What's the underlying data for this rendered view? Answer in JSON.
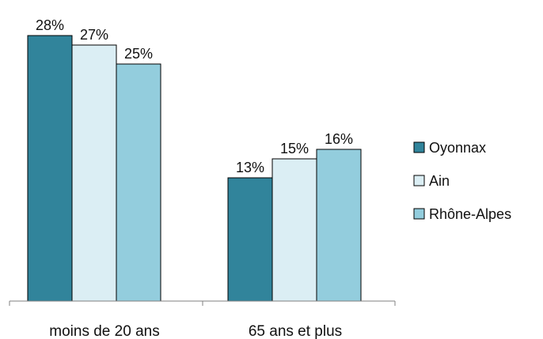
{
  "chart_data": {
    "type": "bar",
    "title": "",
    "xlabel": "",
    "ylabel": "",
    "categories": [
      "moins de 20 ans",
      "65 ans et plus"
    ],
    "series": [
      {
        "name": "Oyonnax",
        "values": [
          28,
          13
        ],
        "labels": [
          "28%",
          "13%"
        ],
        "color": "#31849b"
      },
      {
        "name": "Ain",
        "values": [
          27,
          15
        ],
        "labels": [
          "27%",
          "15%"
        ],
        "color": "#dbeef4"
      },
      {
        "name": "Rhône-Alpes",
        "values": [
          25,
          16
        ],
        "labels": [
          "25%",
          "16%"
        ],
        "color": "#93cddd"
      }
    ],
    "ylim": [
      0,
      30
    ],
    "legend_position": "right",
    "grid": false,
    "bar_border_color": "#000000"
  }
}
